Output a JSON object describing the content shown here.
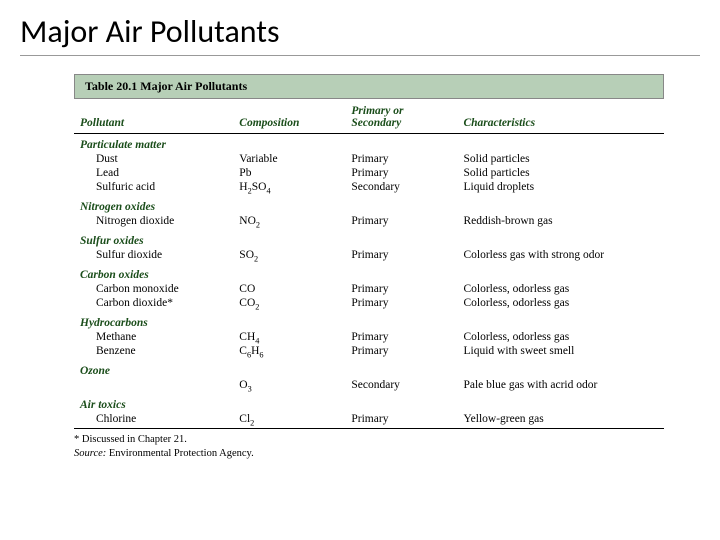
{
  "slide": {
    "title": "Major Air Pollutants"
  },
  "table": {
    "caption": "Table 20.1  Major Air Pollutants",
    "columns": [
      "Pollutant",
      "Composition",
      "Primary or Secondary",
      "Characteristics"
    ],
    "sections": [
      {
        "category": "Particulate matter",
        "rows": [
          {
            "pollutant": "Dust",
            "composition": "Variable",
            "type": "Primary",
            "characteristics": "Solid particles"
          },
          {
            "pollutant": "Lead",
            "composition": "Pb",
            "type": "Primary",
            "characteristics": "Solid particles"
          },
          {
            "pollutant": "Sulfuric acid",
            "composition_html": "H<sub>2</sub>SO<sub>4</sub>",
            "type": "Secondary",
            "characteristics": "Liquid droplets"
          }
        ]
      },
      {
        "category": "Nitrogen oxides",
        "rows": [
          {
            "pollutant": "Nitrogen dioxide",
            "composition_html": "NO<sub>2</sub>",
            "type": "Primary",
            "characteristics": "Reddish-brown gas"
          }
        ]
      },
      {
        "category": "Sulfur oxides",
        "rows": [
          {
            "pollutant": "Sulfur dioxide",
            "composition_html": "SO<sub>2</sub>",
            "type": "Primary",
            "characteristics": "Colorless gas with strong odor"
          }
        ]
      },
      {
        "category": "Carbon oxides",
        "rows": [
          {
            "pollutant": "Carbon monoxide",
            "composition": "CO",
            "type": "Primary",
            "characteristics": "Colorless, odorless gas"
          },
          {
            "pollutant": "Carbon dioxide*",
            "composition_html": "CO<sub>2</sub>",
            "type": "Primary",
            "characteristics": "Colorless, odorless gas"
          }
        ]
      },
      {
        "category": "Hydrocarbons",
        "rows": [
          {
            "pollutant": "Methane",
            "composition_html": "CH<sub>4</sub>",
            "type": "Primary",
            "characteristics": "Colorless, odorless gas"
          },
          {
            "pollutant": "Benzene",
            "composition_html": "C<sub>6</sub>H<sub>6</sub>",
            "type": "Primary",
            "characteristics": "Liquid with sweet smell"
          }
        ]
      },
      {
        "category": "Ozone",
        "rows": [
          {
            "pollutant": "",
            "composition_html": "O<sub>3</sub>",
            "type": "Secondary",
            "characteristics": "Pale blue gas with acrid odor"
          }
        ]
      },
      {
        "category": "Air toxics",
        "rows": [
          {
            "pollutant": "Chlorine",
            "composition_html": "Cl<sub>2</sub>",
            "type": "Primary",
            "characteristics": "Yellow-green gas"
          }
        ]
      }
    ],
    "footnote": "* Discussed in Chapter 21.",
    "source_label": "Source:",
    "source_text": " Environmental Protection Agency."
  },
  "style": {
    "caption_bg": "#b7cfb7",
    "header_color": "#1a4d1a",
    "category_color": "#1a4d1a",
    "border_color": "#000000",
    "background": "#ffffff",
    "title_fontsize": 32,
    "body_fontsize": 11.5,
    "footnote_fontsize": 10.5
  }
}
